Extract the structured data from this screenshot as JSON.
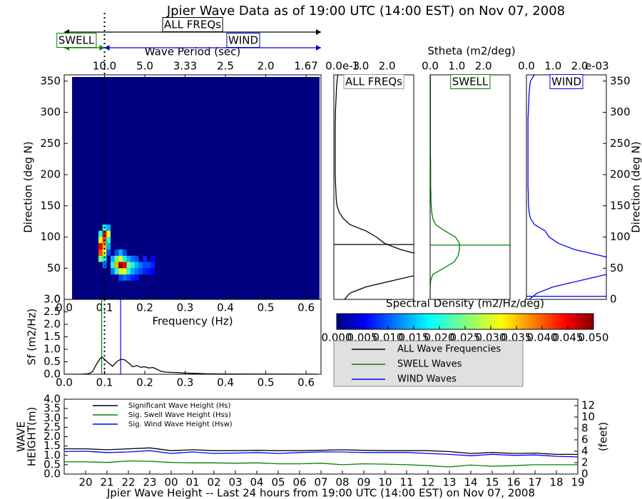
{
  "chart_data": [
    {
      "type": "heatmap",
      "title": "Jpier Wave Data as of 19:00 UTC (14:00 EST) on Nov 07, 2008",
      "xlabel": "Frequency (Hz)",
      "ylabel": "Direction (deg N)",
      "x2label": "Wave Period (sec)",
      "xlim": [
        0,
        0.637
      ],
      "ylim": [
        0,
        360
      ],
      "xticks": [
        {
          "value": 0,
          "label": "0.0"
        },
        0.1,
        0.2,
        0.3,
        0.4,
        0.5,
        0.6
      ],
      "yticks": [
        0,
        50,
        100,
        150,
        200,
        250,
        300,
        350
      ],
      "x2ticks": [
        {
          "value": 0.1,
          "label": "10.0"
        },
        {
          "value": 0.2,
          "label": "5.0"
        },
        {
          "value": 0.3,
          "label": "3.33"
        },
        {
          "value": 0.4,
          "label": "2.5"
        },
        {
          "value": 0.5,
          "label": "2.0"
        },
        {
          "value": 0.6,
          "label": "1.67"
        }
      ],
      "background_value": 0,
      "cells": {
        "x": [
          0.1,
          0.11,
          0.09,
          0.1,
          0.11,
          0.09,
          0.1,
          0.11,
          0.09,
          0.1,
          0.11,
          0.09,
          0.1,
          0.11,
          0.13,
          0.14,
          0.15,
          0.09,
          0.1,
          0.12,
          0.13,
          0.14,
          0.15,
          0.16,
          0.17,
          0.18,
          0.2,
          0.22,
          0.1,
          0.12,
          0.13,
          0.14,
          0.15,
          0.16,
          0.17,
          0.18,
          0.19,
          0.2,
          0.21,
          0.22,
          0.12,
          0.13,
          0.14,
          0.15,
          0.16,
          0.17,
          0.18,
          0.19,
          0.2,
          0.21,
          0.22,
          0.14,
          0.15,
          0.16,
          0.17,
          0.18
        ],
        "y": [
          115,
          115,
          105,
          105,
          105,
          95,
          95,
          95,
          85,
          85,
          85,
          75,
          75,
          75,
          75,
          75,
          75,
          65,
          65,
          65,
          65,
          65,
          65,
          65,
          65,
          65,
          65,
          65,
          55,
          55,
          55,
          55,
          55,
          55,
          55,
          55,
          55,
          55,
          55,
          55,
          45,
          45,
          45,
          45,
          45,
          45,
          45,
          45,
          45,
          45,
          45,
          35,
          35,
          35,
          35,
          35
        ],
        "values": [
          0.02,
          0.015,
          0.02,
          0.045,
          0.03,
          0.03,
          0.04,
          0.02,
          0.045,
          0.035,
          0.015,
          0.04,
          0.03,
          0.01,
          0.01,
          0.015,
          0.01,
          0.025,
          0.02,
          0.015,
          0.025,
          0.03,
          0.02,
          0.015,
          0.012,
          0.01,
          0.008,
          0.006,
          0.012,
          0.02,
          0.035,
          0.05,
          0.045,
          0.025,
          0.02,
          0.015,
          0.012,
          0.01,
          0.01,
          0.008,
          0.012,
          0.02,
          0.03,
          0.03,
          0.02,
          0.015,
          0.012,
          0.01,
          0.008,
          0.007,
          0.006,
          0.01,
          0.012,
          0.01,
          0.008,
          0.007
        ]
      },
      "divider": 0.1,
      "annotations": [
        {
          "text": "ALL FREQs",
          "color": "#000000",
          "from": 0,
          "to": 0.637
        },
        {
          "text": "SWELL",
          "color": "#008000",
          "from": 0,
          "to": 0.1
        },
        {
          "text": "WIND",
          "color": "#0000cd",
          "from": 0.1,
          "to": 0.637
        }
      ],
      "colorbar": {
        "label": "Spectral Density (m2/Hz/deg)",
        "lim": [
          0,
          0.05
        ],
        "ticks": [
          {
            "value": 0,
            "label": "0.000"
          },
          0.005,
          {
            "value": 0.01,
            "label": "0.010"
          },
          0.015,
          {
            "value": 0.02,
            "label": "0.020"
          },
          0.025,
          {
            "value": 0.03,
            "label": "0.030"
          },
          0.035,
          {
            "value": 0.04,
            "label": "0.040"
          },
          0.045,
          {
            "value": 0.05,
            "label": "0.050"
          }
        ]
      }
    },
    {
      "type": "line",
      "ylabel": "Sf (m2/Hz)",
      "xlim": [
        0,
        0.637
      ],
      "ylim": [
        0,
        3
      ],
      "xticks": [
        {
          "value": 0,
          "label": "0.0"
        },
        0.1,
        0.2,
        0.3,
        0.4,
        0.5,
        0.6
      ],
      "yticks": [
        {
          "value": 0,
          "label": "0.0"
        },
        0.5,
        {
          "value": 1,
          "label": "1.0"
        },
        1.5,
        {
          "value": 2,
          "label": "2.0"
        },
        2.5,
        {
          "value": 3,
          "label": "3.0"
        }
      ],
      "series": [
        {
          "name": "ALL Wave Frequencies",
          "color": "#000000",
          "x": [
            0,
            0.02,
            0.04,
            0.06,
            0.07,
            0.08,
            0.09,
            0.095,
            0.1,
            0.11,
            0.12,
            0.13,
            0.14,
            0.15,
            0.16,
            0.17,
            0.18,
            0.19,
            0.2,
            0.21,
            0.22,
            0.23,
            0.24,
            0.25,
            0.27,
            0.3,
            0.35,
            0.4,
            0.5,
            0.63
          ],
          "values": [
            0,
            0,
            0,
            0.02,
            0.1,
            0.4,
            0.65,
            0.68,
            0.6,
            0.45,
            0.32,
            0.5,
            0.6,
            0.58,
            0.45,
            0.3,
            0.35,
            0.28,
            0.3,
            0.25,
            0.27,
            0.2,
            0.12,
            0.09,
            0.07,
            0.05,
            0.02,
            0.01,
            0.005,
            0.002
          ]
        }
      ],
      "markers": [
        {
          "name": "SWELL Waves",
          "color": "#008000",
          "x": 0.093
        },
        {
          "name": "WIND Waves",
          "color": "#0000ff",
          "x": 0.14
        }
      ],
      "divider": 0.1,
      "legend": "outside"
    },
    {
      "type": "profile",
      "title": "ALL FREQs",
      "color": "#000000",
      "xlim": [
        0,
        3
      ],
      "xticks": [
        {
          "value": 0,
          "label": "0.0"
        },
        {
          "value": 1,
          "label": "1.0"
        },
        {
          "value": 2,
          "label": "2.0"
        }
      ],
      "offset_label": "e-3",
      "ylim": [
        0,
        360
      ],
      "y": [
        0,
        10,
        20,
        30,
        40,
        50,
        60,
        70,
        80,
        90,
        100,
        110,
        120,
        130,
        140,
        150,
        160,
        170,
        180,
        190,
        200,
        210,
        220,
        230,
        240,
        250,
        260,
        270,
        280,
        290,
        300,
        310,
        320,
        330,
        340,
        350,
        360
      ],
      "values": [
        0.4,
        0.6,
        1.2,
        2.2,
        3.2,
        4.5,
        4.8,
        3.4,
        2.5,
        1.9,
        1.6,
        1.2,
        0.6,
        0.35,
        0.2,
        0.12,
        0.09,
        0.08,
        0.07,
        0.06,
        0.05,
        0.05,
        0.05,
        0.05,
        0.05,
        0.05,
        0.05,
        0.05,
        0.05,
        0.06,
        0.06,
        0.07,
        0.08,
        0.09,
        0.1,
        0.12,
        0.15
      ],
      "mean_direction": 88
    },
    {
      "type": "profile",
      "title": "SWELL",
      "color": "#008000",
      "xlabel": "Stheta (m2/deg)",
      "xlim": [
        0,
        3
      ],
      "xticks": [
        {
          "value": 0,
          "label": "0.0"
        },
        {
          "value": 1,
          "label": "1.0"
        },
        {
          "value": 2,
          "label": "2.0"
        }
      ],
      "ylim": [
        0,
        360
      ],
      "y": [
        0,
        10,
        20,
        30,
        40,
        50,
        60,
        70,
        80,
        90,
        100,
        110,
        120,
        130,
        140,
        150,
        160,
        170,
        180,
        190,
        200,
        210,
        220,
        230,
        240,
        250,
        260,
        270,
        280,
        290,
        300,
        310,
        320,
        330,
        340,
        350,
        360
      ],
      "values": [
        0,
        0,
        0,
        0.02,
        0.1,
        0.5,
        0.9,
        1.05,
        1.1,
        1.1,
        0.95,
        0.55,
        0.2,
        0.1,
        0.06,
        0.04,
        0.03,
        0.03,
        0.02,
        0.02,
        0.02,
        0.02,
        0.02,
        0.01,
        0.01,
        0.01,
        0.01,
        0.01,
        0.01,
        0.01,
        0.01,
        0.01,
        0.01,
        0.01,
        0.01,
        0.01,
        0.01
      ],
      "mean_direction": 87
    },
    {
      "type": "profile",
      "title": "WIND",
      "color": "#0000ff",
      "ylabel": "Direction (deg N)",
      "xlim": [
        0,
        3
      ],
      "xticks": [
        {
          "value": 0,
          "label": "0.0"
        },
        {
          "value": 1,
          "label": "1.0"
        },
        {
          "value": 2,
          "label": "2.0"
        }
      ],
      "offset_label": "e-03",
      "ylim": [
        0,
        360
      ],
      "yticks": [
        0,
        50,
        100,
        150,
        200,
        250,
        300,
        350
      ],
      "y": [
        0,
        10,
        20,
        30,
        40,
        50,
        60,
        70,
        80,
        90,
        100,
        110,
        120,
        130,
        140,
        150,
        160,
        170,
        180,
        190,
        200,
        210,
        220,
        230,
        240,
        250,
        260,
        270,
        280,
        290,
        300,
        310,
        320,
        330,
        340,
        350,
        360
      ],
      "values": [
        0.1,
        0.4,
        1.0,
        2.0,
        3.0,
        4.0,
        3.8,
        2.8,
        1.8,
        1.2,
        0.85,
        0.7,
        0.3,
        0.15,
        0.1,
        0.08,
        0.07,
        0.07,
        0.06,
        0.06,
        0.06,
        0.06,
        0.06,
        0.06,
        0.06,
        0.06,
        0.06,
        0.06,
        0.06,
        0.06,
        0.07,
        0.08,
        0.09,
        0.1,
        0.12,
        0.15,
        0.3
      ],
      "mean_direction": 5
    },
    {
      "type": "line",
      "xlabel": "Jpier Wave Height -- Last 24 hours from 19:00 UTC (14:00 EST) on Nov 07, 2008",
      "ylabel": [
        "WAVE",
        "HEIGHT(m)"
      ],
      "y2label": "(feet)",
      "xlim": [
        0,
        24
      ],
      "ylim": [
        0,
        4
      ],
      "y2lim": [
        0,
        13.12
      ],
      "xticks": [
        {
          "value": 1,
          "label": "20"
        },
        {
          "value": 2,
          "label": "21"
        },
        {
          "value": 3,
          "label": "22"
        },
        {
          "value": 4,
          "label": "23"
        },
        {
          "value": 5,
          "label": "00"
        },
        {
          "value": 6,
          "label": "01"
        },
        {
          "value": 7,
          "label": "02"
        },
        {
          "value": 8,
          "label": "03"
        },
        {
          "value": 9,
          "label": "04"
        },
        {
          "value": 10,
          "label": "05"
        },
        {
          "value": 11,
          "label": "06"
        },
        {
          "value": 12,
          "label": "07"
        },
        {
          "value": 13,
          "label": "08"
        },
        {
          "value": 14,
          "label": "09"
        },
        {
          "value": 15,
          "label": "10"
        },
        {
          "value": 16,
          "label": "11"
        },
        {
          "value": 17,
          "label": "12"
        },
        {
          "value": 18,
          "label": "13"
        },
        {
          "value": 19,
          "label": "14"
        },
        {
          "value": 20,
          "label": "15"
        },
        {
          "value": 21,
          "label": "16"
        },
        {
          "value": 22,
          "label": "17"
        },
        {
          "value": 23,
          "label": "18"
        },
        {
          "value": 24,
          "label": "19"
        }
      ],
      "yticks": [
        {
          "value": 0,
          "label": "0.0"
        },
        0.5,
        {
          "value": 1,
          "label": "1.0"
        },
        1.5,
        {
          "value": 2,
          "label": "2.0"
        },
        2.5,
        {
          "value": 3,
          "label": "3.0"
        },
        3.5,
        {
          "value": 4,
          "label": "4.0"
        }
      ],
      "y2ticks": [
        0,
        2,
        4,
        6,
        8,
        10,
        12
      ],
      "series": [
        {
          "name": "Significant Wave Height (Hs)",
          "color": "#000000",
          "x": [
            0,
            1,
            2,
            3,
            4,
            5,
            6,
            7,
            8,
            9,
            10,
            11,
            12,
            13,
            14,
            15,
            16,
            17,
            18,
            19,
            20,
            21,
            22,
            23,
            24
          ],
          "values": [
            1.35,
            1.35,
            1.3,
            1.35,
            1.4,
            1.25,
            1.3,
            1.25,
            1.25,
            1.27,
            1.25,
            1.25,
            1.27,
            1.3,
            1.27,
            1.25,
            1.25,
            1.25,
            1.2,
            1.1,
            1.15,
            1.1,
            1.12,
            1.05,
            1.05
          ]
        },
        {
          "name": "Sig. Swell Wave Height (Hss)",
          "color": "#008000",
          "x": [
            0,
            1,
            2,
            3,
            4,
            5,
            6,
            7,
            8,
            9,
            10,
            11,
            12,
            13,
            14,
            15,
            16,
            17,
            18,
            19,
            20,
            21,
            22,
            23,
            24
          ],
          "values": [
            0.65,
            0.65,
            0.62,
            0.7,
            0.68,
            0.62,
            0.6,
            0.6,
            0.58,
            0.6,
            0.55,
            0.55,
            0.58,
            0.5,
            0.55,
            0.53,
            0.5,
            0.45,
            0.38,
            0.48,
            0.42,
            0.45,
            0.5,
            0.5,
            0.5
          ]
        },
        {
          "name": "Sig. Wind Wave Height (Hsw)",
          "color": "#0000ff",
          "x": [
            0,
            1,
            2,
            3,
            4,
            5,
            6,
            7,
            8,
            9,
            10,
            11,
            12,
            13,
            14,
            15,
            16,
            17,
            18,
            19,
            20,
            21,
            22,
            23,
            24
          ],
          "values": [
            1.2,
            1.22,
            1.15,
            1.18,
            1.25,
            1.1,
            1.18,
            1.1,
            1.12,
            1.15,
            1.1,
            1.15,
            1.18,
            1.18,
            1.15,
            1.15,
            1.15,
            1.1,
            1.05,
            0.98,
            1.05,
            1.0,
            1.02,
            0.95,
            0.92
          ]
        }
      ],
      "legend": "upper left"
    }
  ]
}
